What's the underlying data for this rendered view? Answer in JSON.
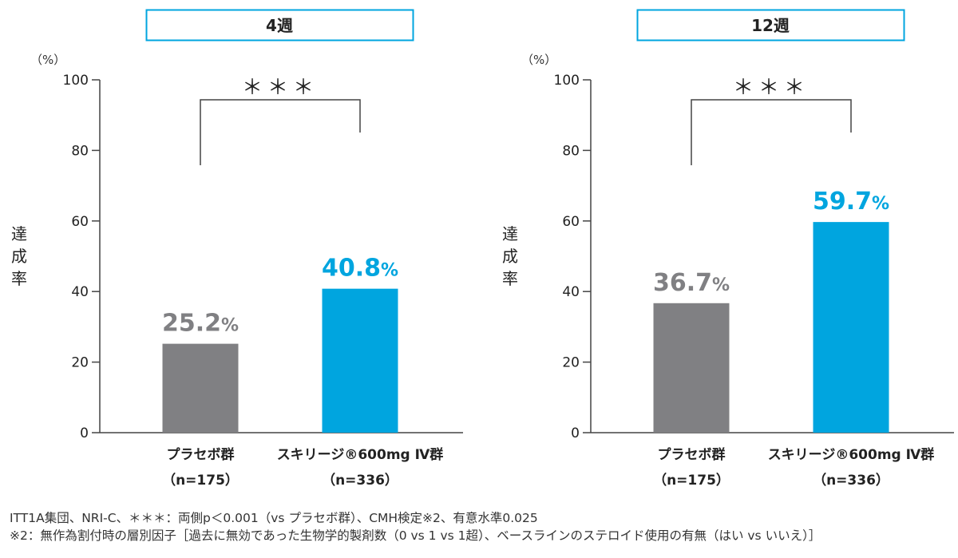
{
  "chart_data": [
    {
      "type": "bar",
      "title": "4週",
      "unit_label": "（%）",
      "ylabel": "達成率",
      "ylim": [
        0,
        100
      ],
      "yticks": [
        "0",
        "20",
        "40",
        "60",
        "80",
        "100"
      ],
      "categories": [
        {
          "line1": "プラセボ群",
          "line2": "（n=175）"
        },
        {
          "line1": "スキリージ®600mg Ⅳ群",
          "line2": "（n=336）"
        }
      ],
      "values": [
        25.2,
        40.8
      ],
      "value_labels": [
        "25.2%",
        "40.8%"
      ],
      "colors": [
        "#808083",
        "#00a5df"
      ],
      "significance": "＊＊＊"
    },
    {
      "type": "bar",
      "title": "12週",
      "unit_label": "（%）",
      "ylabel": "達成率",
      "ylim": [
        0,
        100
      ],
      "yticks": [
        "0",
        "20",
        "40",
        "60",
        "80",
        "100"
      ],
      "categories": [
        {
          "line1": "プラセボ群",
          "line2": "（n=175）"
        },
        {
          "line1": "スキリージ®600mg Ⅳ群",
          "line2": "（n=336）"
        }
      ],
      "values": [
        36.7,
        59.7
      ],
      "value_labels": [
        "36.7%",
        "59.7%"
      ],
      "colors": [
        "#808083",
        "#00a5df"
      ],
      "significance": "＊＊＊"
    }
  ],
  "footnotes": {
    "line1": "ITT1A集団、NRI-C、＊＊＊：両側p＜0.001（vs プラセボ群）、CMH検定※2、有意水準0.025",
    "line2": "※2：無作為割付時の層別因子［過去に無効であった生物学的製剤数（0 vs 1 vs 1超）、ベースラインのステロイド使用の有無（はい vs いいえ）］"
  },
  "theme": {
    "title_border": "#00a5df",
    "axis": "#444444",
    "placebo_label": "#808083",
    "drug_label": "#00a5df"
  }
}
